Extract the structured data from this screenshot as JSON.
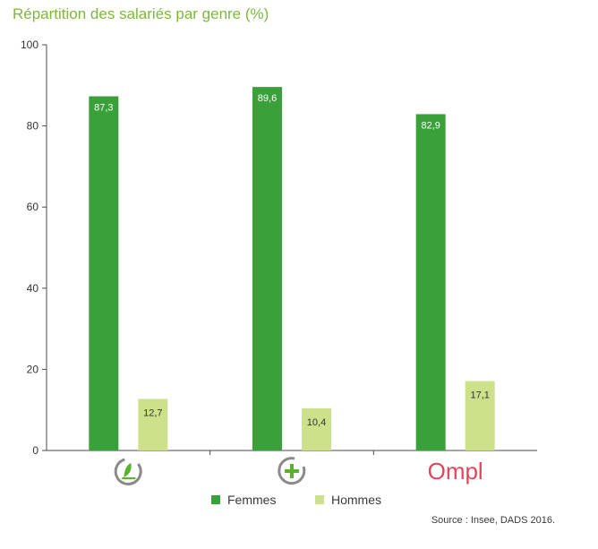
{
  "chart_data": {
    "type": "bar",
    "title": "Répartition des salariés par genre (%)",
    "categories": [
      "",
      "",
      "Ompl"
    ],
    "category_icons": [
      "leaf-person-icon",
      "green-plus-icon",
      "ompl-logo"
    ],
    "series": [
      {
        "name": "Femmes",
        "values": [
          87.3,
          89.6,
          82.9
        ],
        "labels": [
          "87,3",
          "89,6",
          "82,9"
        ],
        "color": "#3aa13a"
      },
      {
        "name": "Hommes",
        "values": [
          12.7,
          10.4,
          17.1
        ],
        "labels": [
          "12,7",
          "10,4",
          "17,1"
        ],
        "color": "#cde08a"
      }
    ],
    "ylim": [
      0,
      100
    ],
    "yticks": [
      0,
      20,
      40,
      60,
      80,
      100
    ],
    "ytick_labels": [
      "0",
      "20",
      "40",
      "60",
      "80",
      "100"
    ],
    "grid": false,
    "legend_position": "bottom",
    "source": "Source : Insee, DADS 2016.",
    "colors": {
      "title": "#7cb83a",
      "axis": "#4a4a4a",
      "icon_grey": "#8a8a8a",
      "ompl": "#e0475a"
    }
  }
}
